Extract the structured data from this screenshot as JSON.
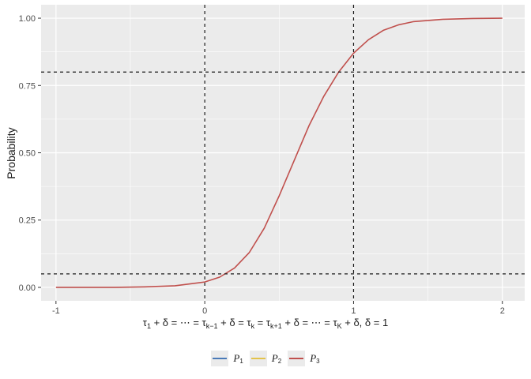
{
  "chart_data": {
    "type": "line",
    "xlabel": "τ₁ + δ = ⋯ = τₖ₋₁ + δ = τₖ = τₖ₊₁ + δ = ⋯ = τ_K + δ, δ = 1",
    "ylabel": "Probability",
    "xlim": [
      -1.1,
      2.15
    ],
    "ylim": [
      -0.05,
      1.05
    ],
    "x_ticks": [
      -1,
      0,
      1,
      2
    ],
    "x_tick_labels": [
      "-1",
      "0",
      "1",
      "2"
    ],
    "y_ticks": [
      0,
      0.25,
      0.5,
      0.75,
      1
    ],
    "y_tick_labels": [
      "0.00",
      "0.25",
      "0.50",
      "0.75",
      "1.00"
    ],
    "grid": true,
    "legend_position": "bottom",
    "series": [
      {
        "name": "P1",
        "color": "#4a7ab8",
        "x": [],
        "y": []
      },
      {
        "name": "P2",
        "color": "#e3c34b",
        "x": [],
        "y": []
      },
      {
        "name": "P3",
        "color": "#c0504d",
        "x": [
          -1,
          -0.8,
          -0.6,
          -0.4,
          -0.2,
          0,
          0.1,
          0.2,
          0.3,
          0.4,
          0.5,
          0.6,
          0.7,
          0.8,
          0.9,
          1,
          1.1,
          1.2,
          1.3,
          1.4,
          1.6,
          1.8,
          2
        ],
        "y": [
          0,
          0,
          0,
          0.002,
          0.006,
          0.02,
          0.038,
          0.072,
          0.13,
          0.22,
          0.34,
          0.47,
          0.6,
          0.71,
          0.8,
          0.87,
          0.92,
          0.955,
          0.975,
          0.987,
          0.996,
          0.999,
          1
        ]
      }
    ],
    "reference_lines": {
      "vertical": [
        0,
        1
      ],
      "horizontal": [
        0.05,
        0.8
      ],
      "style": "dashed"
    }
  },
  "legend": {
    "items": [
      {
        "letter": "P",
        "sub": "1",
        "color": "#4a7ab8"
      },
      {
        "letter": "P",
        "sub": "2",
        "color": "#e3c34b"
      },
      {
        "letter": "P",
        "sub": "3",
        "color": "#c0504d"
      }
    ]
  }
}
